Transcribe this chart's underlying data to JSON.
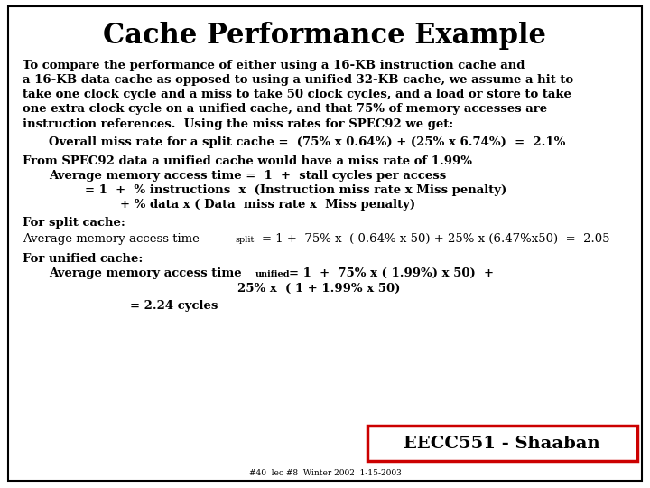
{
  "title": "Cache Performance Example",
  "bg_color": "#ffffff",
  "border_color": "#000000",
  "title_fontsize": 22,
  "body_fontsize": 9.5,
  "small_fontsize": 7.0,
  "footer_fontsize": 6.5,
  "stamp_fontsize": 14,
  "stamp_text": "EECC551 - Shaaban",
  "stamp_color": "#cc0000",
  "footer_text": "#40  lec #8  Winter 2002  1-15-2003",
  "body_color": "#000000"
}
